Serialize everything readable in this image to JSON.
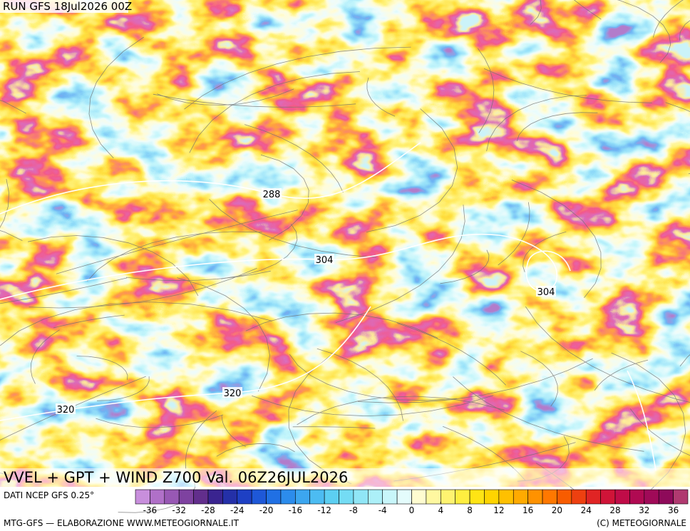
{
  "header": {
    "run": "RUN GFS 18Jul2026 00Z"
  },
  "map": {
    "title": "VVEL + GPT + WIND Z700 Val. 06Z26JUL2026",
    "contour_labels": [
      288,
      304,
      304,
      320,
      320
    ]
  },
  "legend": {
    "source": "DATI NCEP GFS 0.25°",
    "range": [
      -38,
      38
    ],
    "ticks": [
      -36,
      -32,
      -28,
      -24,
      -20,
      -16,
      -12,
      -8,
      -4,
      0,
      4,
      8,
      12,
      16,
      20,
      24,
      28,
      32,
      36
    ],
    "colors": [
      "#c88fdc",
      "#b070c8",
      "#9858b4",
      "#7e42a0",
      "#622e8c",
      "#3a2490",
      "#2430a8",
      "#1e40c4",
      "#1e58d8",
      "#2070e4",
      "#2c8cec",
      "#3ca6f0",
      "#4cbcf2",
      "#5ccff2",
      "#74dcf4",
      "#90e6f6",
      "#acf0f8",
      "#c8f6fa",
      "#e4fcfc",
      "#fffcd0",
      "#fff8a0",
      "#fff370",
      "#ffee40",
      "#ffe414",
      "#ffd400",
      "#ffc000",
      "#ffaa00",
      "#ff9200",
      "#ff7800",
      "#f85c00",
      "#ee4010",
      "#e02424",
      "#d01438",
      "#c00c48",
      "#b00a52",
      "#a00a58",
      "#8e0a5a",
      "#b03a70"
    ]
  },
  "footer": {
    "left": "MTG-GFS — ELABORAZIONE WWW.METEOGIORNALE.IT",
    "right": "(C) METEOGIORNALE"
  }
}
